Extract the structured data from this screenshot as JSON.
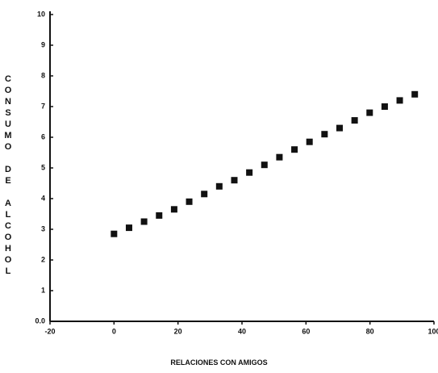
{
  "chart_data": {
    "type": "scatter",
    "x_label": "RELACIONES CON AMIGOS",
    "y_label": "CONSUMO DE ALCOHOL",
    "x": [
      0,
      4.7,
      9.4,
      14.1,
      18.8,
      23.5,
      28.2,
      32.9,
      37.6,
      42.3,
      47,
      51.7,
      56.4,
      61.1,
      65.8,
      70.5,
      75.2,
      79.9,
      84.6,
      89.3,
      94
    ],
    "values": [
      2.85,
      3.05,
      3.25,
      3.45,
      3.65,
      3.9,
      4.15,
      4.4,
      4.6,
      4.85,
      5.1,
      5.35,
      5.6,
      5.85,
      6.1,
      6.3,
      6.55,
      6.8,
      7.0,
      7.2,
      7.4
    ],
    "color": "#111111",
    "xlim": [
      -20,
      100
    ],
    "xticks": [
      -20,
      0,
      20,
      40,
      60,
      80,
      100
    ],
    "ylim": [
      0,
      10
    ],
    "yticks": [
      {
        "value": 0,
        "label": "0.0"
      },
      1,
      2,
      3,
      4,
      5,
      6,
      7,
      8,
      9,
      10
    ]
  }
}
